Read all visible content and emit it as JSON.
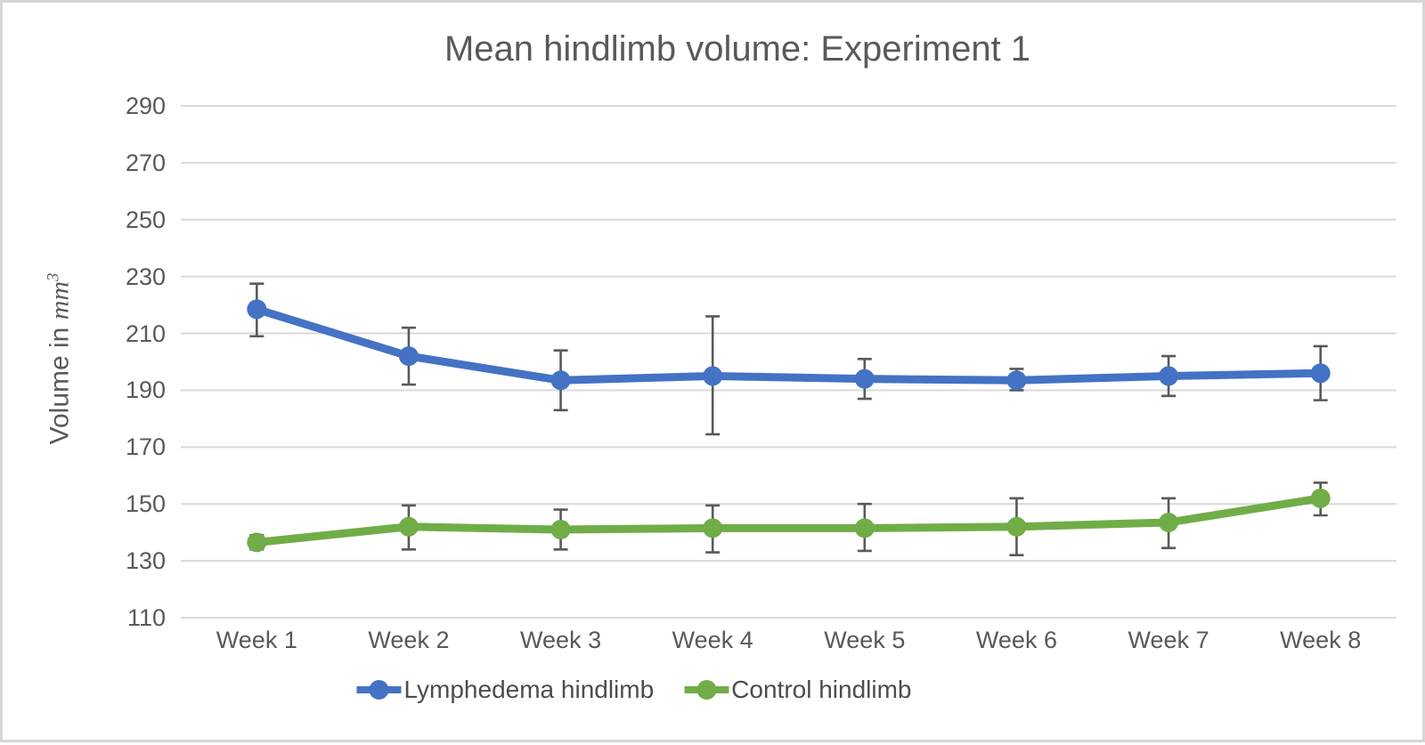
{
  "chart_data": {
    "type": "line",
    "title": "Mean hindlimb volume: Experiment 1",
    "ylabel": {
      "prefix": "Volume in",
      "unit": "mm",
      "exponent": "3"
    },
    "xlabel": "",
    "categories": [
      "Week 1",
      "Week 2",
      "Week 3",
      "Week 4",
      "Week 5",
      "Week 6",
      "Week 7",
      "Week 8"
    ],
    "ylim": [
      110,
      290
    ],
    "ytick_step": 20,
    "yticks": [
      110,
      130,
      150,
      170,
      190,
      210,
      230,
      250,
      270,
      290
    ],
    "grid": "horizontal-only",
    "legend_position": "bottom-center",
    "series": [
      {
        "name": "Lymphedema hindlimb",
        "color": "#4472C4",
        "values": [
          218.5,
          202,
          193.5,
          195,
          194,
          193.5,
          195,
          196
        ],
        "error_high": [
          227.5,
          212,
          204,
          216,
          201,
          197.5,
          202,
          205.5
        ],
        "error_low": [
          209,
          192,
          183,
          174.5,
          187,
          190,
          188,
          186.5
        ]
      },
      {
        "name": "Control hindlimb",
        "color": "#70AD47",
        "values": [
          136.5,
          142,
          141,
          141.5,
          141.5,
          142,
          143.5,
          152
        ],
        "error_high": [
          139,
          149.5,
          148,
          149.5,
          150,
          152,
          152,
          157.5
        ],
        "error_low": [
          134,
          134,
          134,
          133,
          133.5,
          132,
          134.5,
          146
        ]
      }
    ],
    "colors": {
      "error_bar": "#595959",
      "gridline": "#d9d9d9",
      "text": "#595959",
      "frame_border": "#d6d6d6",
      "background": "#ffffff"
    }
  }
}
